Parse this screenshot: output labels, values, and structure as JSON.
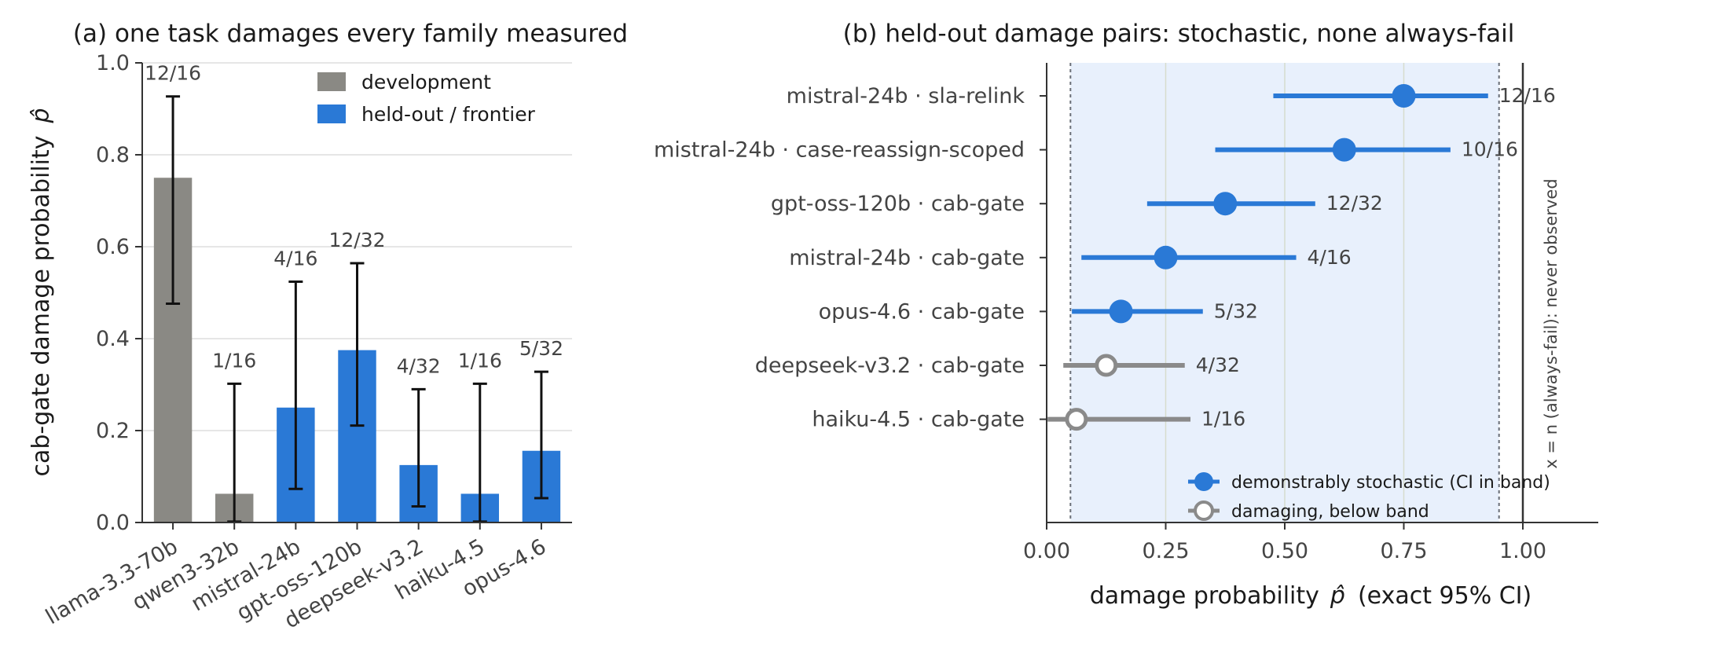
{
  "colors": {
    "development": "#8a8984",
    "heldout": "#2a79d6",
    "below_band": "#8a8a8a",
    "band": "#e8f0fc",
    "errorbar": "#111111",
    "grid": "#dddddd"
  },
  "chart_data": [
    {
      "type": "bar",
      "title": "(a) one task damages every family measured",
      "xlabel": "",
      "ylabel": "cab-gate damage probability",
      "ylabel_symbol": "p̂",
      "ylim": [
        0,
        1
      ],
      "yticks": [
        "0.0",
        "0.2",
        "0.4",
        "0.6",
        "0.8",
        "1.0"
      ],
      "grid": "horizontal",
      "legend_position": "upper-right",
      "legend": [
        {
          "label": "development",
          "color_key": "development"
        },
        {
          "label": "held-out / frontier",
          "color_key": "heldout"
        }
      ],
      "categories": [
        "llama-3.3-70b",
        "qwen3-32b",
        "mistral-24b",
        "gpt-oss-120b",
        "deepseek-v3.2",
        "haiku-4.5",
        "opus-4.6"
      ],
      "groups": [
        "development",
        "development",
        "heldout",
        "heldout",
        "heldout",
        "heldout",
        "heldout"
      ],
      "values": [
        0.75,
        0.0625,
        0.25,
        0.375,
        0.125,
        0.0625,
        0.156
      ],
      "ci_low": [
        0.476,
        0.002,
        0.073,
        0.211,
        0.035,
        0.002,
        0.053
      ],
      "ci_high": [
        0.927,
        0.302,
        0.524,
        0.564,
        0.29,
        0.302,
        0.328
      ],
      "labels": [
        "12/16",
        "1/16",
        "4/16",
        "12/32",
        "4/32",
        "1/16",
        "5/32"
      ]
    },
    {
      "type": "scatter",
      "title": "(b) held-out damage pairs: stochastic, none always-fail",
      "xlabel": "damage probability",
      "xlabel_symbol": "p̂",
      "xlabel_suffix": "(exact 95% CI)",
      "xlim": [
        0,
        1.15
      ],
      "xticks": [
        "0.00",
        "0.25",
        "0.50",
        "0.75",
        "1.00"
      ],
      "band": [
        0.05,
        0.95
      ],
      "reference_line_x": 1.0,
      "reference_label": "x = n (always-fail): never observed",
      "legend_position": "lower-right",
      "legend": [
        {
          "label": "demonstrably stochastic (CI in band)",
          "style": "stochastic"
        },
        {
          "label": "damaging, below band",
          "style": "below"
        }
      ],
      "points": [
        {
          "label": "mistral-24b · sla-relink",
          "p": 0.75,
          "lo": 0.476,
          "hi": 0.927,
          "frac": "12/16",
          "style": "stochastic"
        },
        {
          "label": "mistral-24b · case-reassign-scoped",
          "p": 0.625,
          "lo": 0.354,
          "hi": 0.848,
          "frac": "10/16",
          "style": "stochastic"
        },
        {
          "label": "gpt-oss-120b · cab-gate",
          "p": 0.375,
          "lo": 0.211,
          "hi": 0.564,
          "frac": "12/32",
          "style": "stochastic"
        },
        {
          "label": "mistral-24b · cab-gate",
          "p": 0.25,
          "lo": 0.073,
          "hi": 0.524,
          "frac": "4/16",
          "style": "stochastic"
        },
        {
          "label": "opus-4.6 · cab-gate",
          "p": 0.156,
          "lo": 0.053,
          "hi": 0.328,
          "frac": "5/32",
          "style": "stochastic"
        },
        {
          "label": "deepseek-v3.2 · cab-gate",
          "p": 0.125,
          "lo": 0.035,
          "hi": 0.29,
          "frac": "4/32",
          "style": "below"
        },
        {
          "label": "haiku-4.5 · cab-gate",
          "p": 0.0625,
          "lo": 0.002,
          "hi": 0.302,
          "frac": "1/16",
          "style": "below"
        }
      ]
    }
  ]
}
